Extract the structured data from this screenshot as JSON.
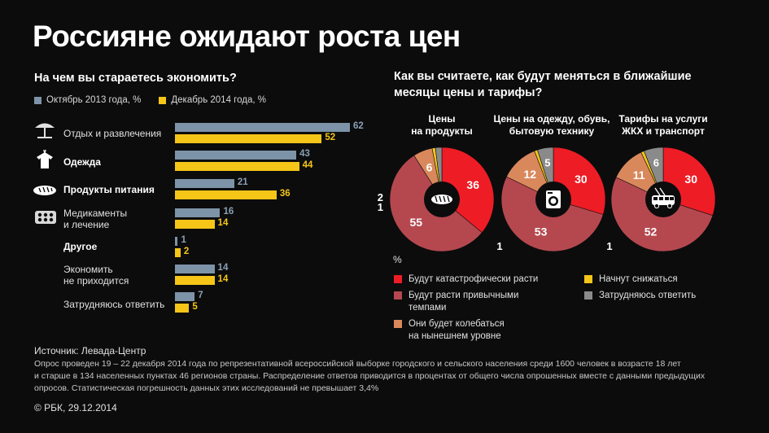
{
  "title": "Россияне ожидают роста цен",
  "left_question": "На чем вы стараетесь экономить?",
  "right_question_line1": "Как вы считаете, как будут меняться в ближайшие",
  "right_question_line2": "месяцы цены и тарифы?",
  "colors": {
    "oct2013": "#7d93a8",
    "dec2014": "#f5c518",
    "catastrophic": "#ee1c25",
    "usual": "#b5484f",
    "fluctuate": "#d9885c",
    "decrease": "#f5c518",
    "undecided": "#8a8a8a"
  },
  "chart_data": [
    {
      "type": "bar",
      "orientation": "horizontal",
      "categories": [
        "Отдых и развлечения",
        "Одежда",
        "Продукты питания",
        "Медикаменты и лечение",
        "Другое",
        "Экономить не приходится",
        "Затрудняюсь ответить"
      ],
      "series": [
        {
          "name": "Октябрь 2013 года, %",
          "values": [
            62,
            43,
            21,
            16,
            1,
            14,
            7
          ]
        },
        {
          "name": "Декабрь 2014 года, %",
          "values": [
            52,
            44,
            36,
            14,
            2,
            14,
            5
          ]
        }
      ],
      "xlim": [
        0,
        62
      ],
      "legend_position": "top"
    },
    {
      "type": "pie",
      "title": "Цены на продукты",
      "labels": [
        "Будут катастрофически расти",
        "Будут расти привычными темпами",
        "Они будет колебаться на нынешнем уровне",
        "Начнут снижаться",
        "Затрудняюсь ответить"
      ],
      "values": [
        36,
        55,
        6,
        1,
        2
      ]
    },
    {
      "type": "pie",
      "title": "Цены на одежду, обувь, бытовую технику",
      "labels": [
        "Будут катастрофически расти",
        "Будут расти привычными темпами",
        "Они будет колебаться на нынешнем уровне",
        "Начнут снижаться",
        "Затрудняюсь ответить"
      ],
      "values": [
        30,
        53,
        12,
        1,
        5
      ]
    },
    {
      "type": "pie",
      "title": "Тарифы на услуги ЖКХ и транспорт",
      "labels": [
        "Будут катастрофически расти",
        "Будут расти привычными темпами",
        "Они будет колебаться на нынешнем уровне",
        "Начнут снижаться",
        "Затрудняюсь ответить"
      ],
      "values": [
        30,
        52,
        11,
        1,
        6
      ]
    }
  ],
  "bar_legend": {
    "oct2013": "Октябрь 2013 года, %",
    "dec2014": "Декабрь 2014 года, %"
  },
  "bar_labels": {
    "rest": "Отдых и развлечения",
    "clothes": "Одежда",
    "food": "Продукты питания",
    "meds1": "Медикаменты",
    "meds2": "и лечение",
    "other": "Другое",
    "nosave1": "Экономить",
    "nosave2": "не приходится",
    "dk": "Затрудняюсь ответить"
  },
  "pie_titles": {
    "p1_l1": "Цены",
    "p1_l2": "на продукты",
    "p2_l1": "Цены на одежду, обувь,",
    "p2_l2": "бытовую технику",
    "p3_l1": "Тарифы на услуги",
    "p3_l2": "ЖКХ и транспорт"
  },
  "percent_mark": "%",
  "pie_legend": {
    "catastrophic": "Будут катастрофически расти",
    "usual": "Будут расти привычными темпами",
    "fluctuate1": "Они будет колебаться",
    "fluctuate2": "на нынешнем уровне",
    "decrease": "Начнут снижаться",
    "undecided": "Затрудняюсь ответить"
  },
  "icons": [
    "umbrella-icon",
    "shirt-icon",
    "bread-icon",
    "pills-icon",
    "washing-machine-icon",
    "trolleybus-icon"
  ],
  "source": "Источник: Левада-Центр",
  "footnote1": "Опрос проведен 19 – 22 декабря 2014 года  по репрезентативной всероссийской выборке городского и сельского населения среди 1600 человек в возрасте 18 лет",
  "footnote2": "и старше в 134 населенных пунктах 46 регионов страны. Распределение ответов приводится в процентах от общего числа опрошенных вместе с данными предыдущих",
  "footnote3": "опросов. Статистическая погрешность данных этих исследований не превышает 3,4%",
  "copyright": "© РБК, 29.12.2014"
}
